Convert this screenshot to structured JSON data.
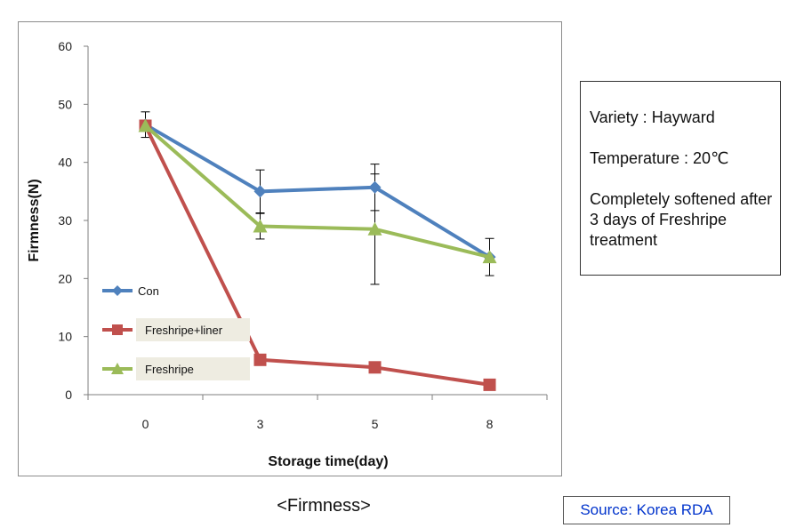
{
  "chart_data": {
    "type": "line",
    "title": "",
    "xlabel": "Storage time(day)",
    "ylabel": "Firmness(N)",
    "categories": [
      "0",
      "3",
      "5",
      "8"
    ],
    "ylim": [
      0,
      60
    ],
    "yticks": [
      0,
      10,
      20,
      30,
      40,
      50,
      60
    ],
    "grid": false,
    "legend_position": "lower-left",
    "series": [
      {
        "name": "Con",
        "color": "#4f81bd",
        "marker": "diamond",
        "values": [
          46.5,
          35,
          35.7,
          23.7
        ],
        "error": [
          2.2,
          3.7,
          4.0,
          3.2
        ]
      },
      {
        "name": "Freshripe+liner",
        "color": "#c0504d",
        "marker": "square",
        "values": [
          46.3,
          6,
          4.7,
          1.7
        ],
        "error": [
          0,
          0,
          0,
          0
        ]
      },
      {
        "name": "Freshripe",
        "color": "#9bbb59",
        "marker": "triangle",
        "values": [
          46.3,
          29,
          28.5,
          23.7
        ],
        "error": [
          0,
          2.2,
          9.5,
          0
        ]
      }
    ]
  },
  "notes": {
    "variety": "Variety : Hayward",
    "temperature": "Temperature : 20℃",
    "remark": "Completely softened after 3 days of Freshripe treatment"
  },
  "caption": "<Firmness>",
  "source": "Source: Korea RDA"
}
